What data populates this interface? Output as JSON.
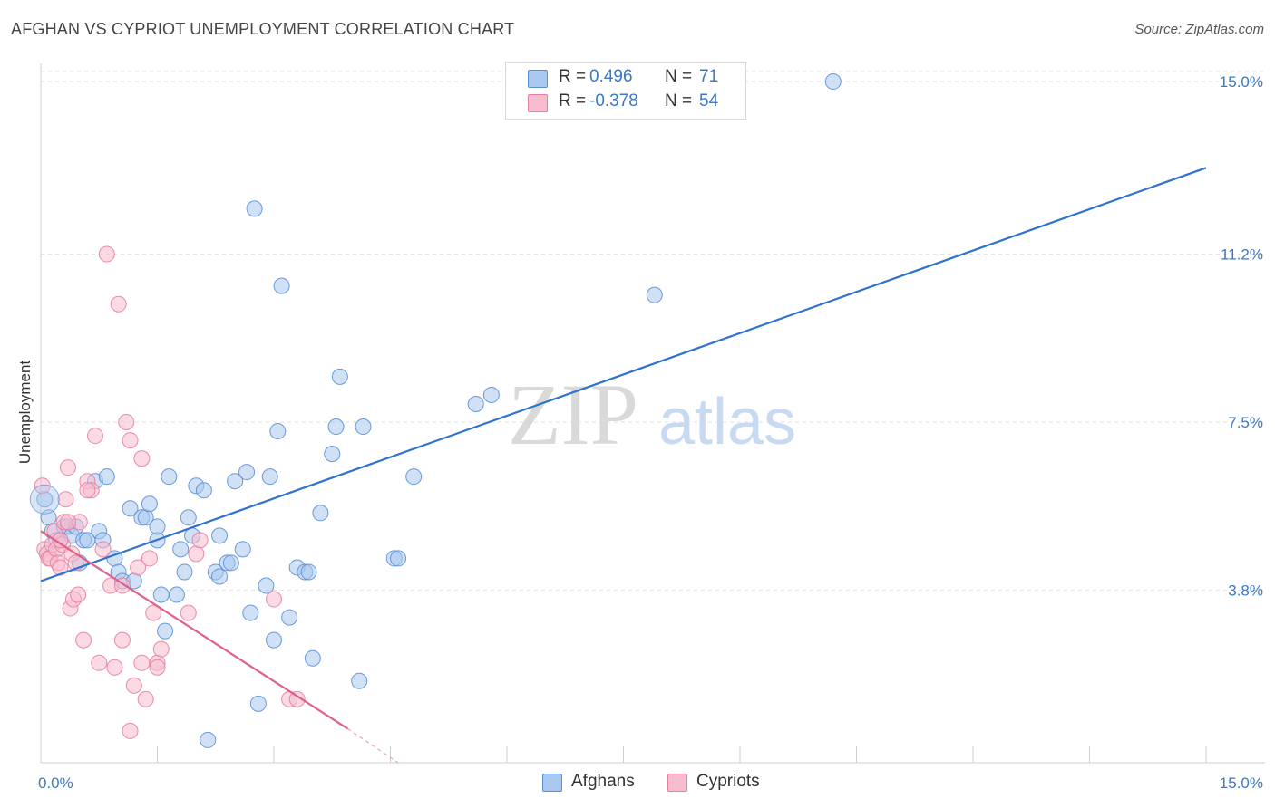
{
  "title": "AFGHAN VS CYPRIOT UNEMPLOYMENT CORRELATION CHART",
  "source": "Source: ZipAtlas.com",
  "watermark": {
    "zip": "ZIP",
    "atlas": "atlas"
  },
  "legend": {
    "rows": [
      {
        "r_label": "R =",
        "r_value": "0.496",
        "n_label": "N =",
        "n_value": "71",
        "color": "#a9c8ef",
        "stroke": "#5b8fd6"
      },
      {
        "r_label": "R =",
        "r_value": "-0.378",
        "n_label": "N =",
        "n_value": "54",
        "color": "#f7bccd",
        "stroke": "#e57fa0"
      }
    ]
  },
  "bottom_legend": [
    {
      "label": "Afghans",
      "color": "#a9c8ef",
      "stroke": "#5b8fd6"
    },
    {
      "label": "Cypriots",
      "color": "#f7bccd",
      "stroke": "#e57fa0"
    }
  ],
  "chart_data": {
    "type": "scatter",
    "title": "AFGHAN VS CYPRIOT UNEMPLOYMENT CORRELATION CHART",
    "xlabel": "",
    "ylabel": "Unemployment",
    "xlim": [
      0,
      15.0
    ],
    "ylim": [
      0,
      15.4
    ],
    "x_tick_labels": [
      {
        "value": 0,
        "label": "0.0%"
      },
      {
        "value": 15.0,
        "label": "15.0%"
      }
    ],
    "y_tick_labels": [
      {
        "value": 3.8,
        "label": "3.8%"
      },
      {
        "value": 7.5,
        "label": "7.5%"
      },
      {
        "value": 11.2,
        "label": "11.2%"
      },
      {
        "value": 15.0,
        "label": "15.0%"
      }
    ],
    "grid": "horizontal dashed",
    "legend_position": "top-center",
    "series": [
      {
        "name": "Afghans",
        "color": "#5b8fd6",
        "fill": "#a9c8ef",
        "trend": {
          "x": [
            0.0,
            15.0
          ],
          "y": [
            4.0,
            13.1
          ]
        },
        "points": [
          [
            0.05,
            5.8
          ],
          [
            0.1,
            5.4
          ],
          [
            0.15,
            5.1
          ],
          [
            0.2,
            4.9
          ],
          [
            0.25,
            4.9
          ],
          [
            0.3,
            5.2
          ],
          [
            0.35,
            5.2
          ],
          [
            0.4,
            5.0
          ],
          [
            0.5,
            4.4
          ],
          [
            0.55,
            4.9
          ],
          [
            0.6,
            4.9
          ],
          [
            0.7,
            6.2
          ],
          [
            0.75,
            5.1
          ],
          [
            0.85,
            6.3
          ],
          [
            0.8,
            4.9
          ],
          [
            0.95,
            4.5
          ],
          [
            1.0,
            4.2
          ],
          [
            1.05,
            4.0
          ],
          [
            1.15,
            5.6
          ],
          [
            1.2,
            4.0
          ],
          [
            1.3,
            5.4
          ],
          [
            1.35,
            5.4
          ],
          [
            1.4,
            5.7
          ],
          [
            1.5,
            4.9
          ],
          [
            1.5,
            5.2
          ],
          [
            1.55,
            3.7
          ],
          [
            1.6,
            2.9
          ],
          [
            1.65,
            6.3
          ],
          [
            1.75,
            3.7
          ],
          [
            1.8,
            4.7
          ],
          [
            1.85,
            4.2
          ],
          [
            1.9,
            5.4
          ],
          [
            1.95,
            5.0
          ],
          [
            2.0,
            6.1
          ],
          [
            2.1,
            6.0
          ],
          [
            2.15,
            0.5
          ],
          [
            2.25,
            4.2
          ],
          [
            2.3,
            5.0
          ],
          [
            2.3,
            4.1
          ],
          [
            2.4,
            4.4
          ],
          [
            2.45,
            4.4
          ],
          [
            2.5,
            6.2
          ],
          [
            2.6,
            4.7
          ],
          [
            2.65,
            6.4
          ],
          [
            2.7,
            3.3
          ],
          [
            2.75,
            12.2
          ],
          [
            2.8,
            1.3
          ],
          [
            2.9,
            3.9
          ],
          [
            2.95,
            6.3
          ],
          [
            3.0,
            2.7
          ],
          [
            3.05,
            7.3
          ],
          [
            3.1,
            10.5
          ],
          [
            3.2,
            3.2
          ],
          [
            3.3,
            4.3
          ],
          [
            3.4,
            4.2
          ],
          [
            3.45,
            4.2
          ],
          [
            3.5,
            2.3
          ],
          [
            3.6,
            5.5
          ],
          [
            3.75,
            6.8
          ],
          [
            3.8,
            7.4
          ],
          [
            3.85,
            8.5
          ],
          [
            4.15,
            7.4
          ],
          [
            4.1,
            1.8
          ],
          [
            4.55,
            4.5
          ],
          [
            4.6,
            4.5
          ],
          [
            4.8,
            6.3
          ],
          [
            5.6,
            7.9
          ],
          [
            5.8,
            8.1
          ],
          [
            7.9,
            10.3
          ],
          [
            10.2,
            15.0
          ],
          [
            0.45,
            5.2
          ]
        ]
      },
      {
        "name": "Cypriots",
        "color": "#e57fa0",
        "fill": "#f7bccd",
        "trend": {
          "x": [
            0.0,
            3.95
          ],
          "y": [
            5.1,
            0.75
          ]
        },
        "trend_dashed": {
          "x": [
            3.95,
            4.6
          ],
          "y": [
            0.75,
            0.0
          ]
        },
        "points": [
          [
            0.02,
            6.1
          ],
          [
            0.05,
            4.7
          ],
          [
            0.08,
            4.6
          ],
          [
            0.1,
            4.5
          ],
          [
            0.12,
            4.5
          ],
          [
            0.15,
            4.8
          ],
          [
            0.18,
            5.1
          ],
          [
            0.2,
            4.7
          ],
          [
            0.22,
            4.4
          ],
          [
            0.25,
            4.3
          ],
          [
            0.28,
            4.8
          ],
          [
            0.3,
            5.3
          ],
          [
            0.32,
            5.8
          ],
          [
            0.35,
            6.5
          ],
          [
            0.38,
            3.4
          ],
          [
            0.4,
            4.6
          ],
          [
            0.42,
            3.6
          ],
          [
            0.45,
            4.4
          ],
          [
            0.48,
            3.7
          ],
          [
            0.5,
            5.3
          ],
          [
            0.55,
            2.7
          ],
          [
            0.6,
            6.2
          ],
          [
            0.65,
            6.0
          ],
          [
            0.7,
            7.2
          ],
          [
            0.75,
            2.2
          ],
          [
            0.8,
            4.7
          ],
          [
            0.85,
            11.2
          ],
          [
            0.9,
            3.9
          ],
          [
            0.95,
            2.1
          ],
          [
            1.0,
            10.1
          ],
          [
            1.05,
            3.9
          ],
          [
            1.05,
            2.7
          ],
          [
            1.1,
            7.5
          ],
          [
            1.15,
            7.1
          ],
          [
            1.15,
            0.7
          ],
          [
            1.2,
            1.7
          ],
          [
            1.25,
            4.3
          ],
          [
            1.3,
            6.7
          ],
          [
            1.3,
            2.2
          ],
          [
            1.35,
            1.4
          ],
          [
            1.4,
            4.5
          ],
          [
            1.45,
            3.3
          ],
          [
            1.5,
            2.2
          ],
          [
            1.5,
            2.1
          ],
          [
            1.55,
            2.5
          ],
          [
            1.9,
            3.3
          ],
          [
            2.0,
            4.6
          ],
          [
            2.05,
            4.9
          ],
          [
            3.0,
            3.6
          ],
          [
            3.2,
            1.4
          ],
          [
            3.3,
            1.4
          ],
          [
            0.6,
            6.0
          ],
          [
            0.35,
            5.3
          ],
          [
            0.25,
            4.9
          ]
        ]
      }
    ]
  }
}
